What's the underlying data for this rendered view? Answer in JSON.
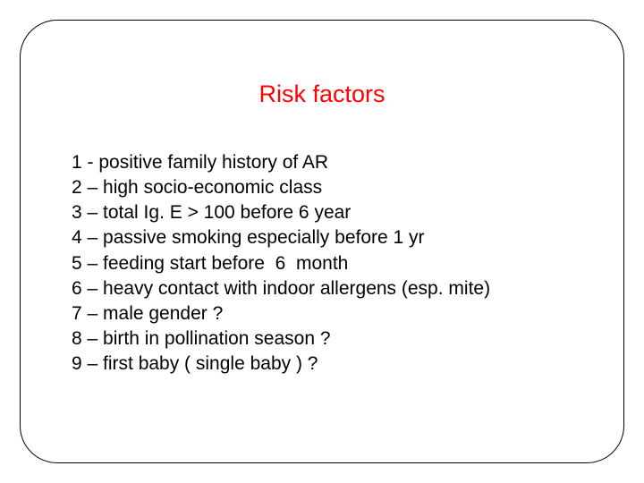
{
  "slide": {
    "title": "Risk factors",
    "title_color": "#ff0000",
    "title_fontsize": 27,
    "body_color": "#000000",
    "body_fontsize": 21,
    "frame_border_color": "#000000",
    "frame_border_radius": 42,
    "background_color": "#ffffff",
    "items": [
      "1 - positive family history of AR",
      "2 – high socio-economic class",
      "3 – total Ig. E > 100 before 6 year",
      "4 – passive smoking especially before 1 yr",
      "5 – feeding start before  6  month",
      "6 – heavy contact with indoor allergens (esp. mite)",
      "7 – male gender ?",
      "8 – birth in pollination season ?",
      "9 – first baby ( single baby ) ?"
    ]
  }
}
